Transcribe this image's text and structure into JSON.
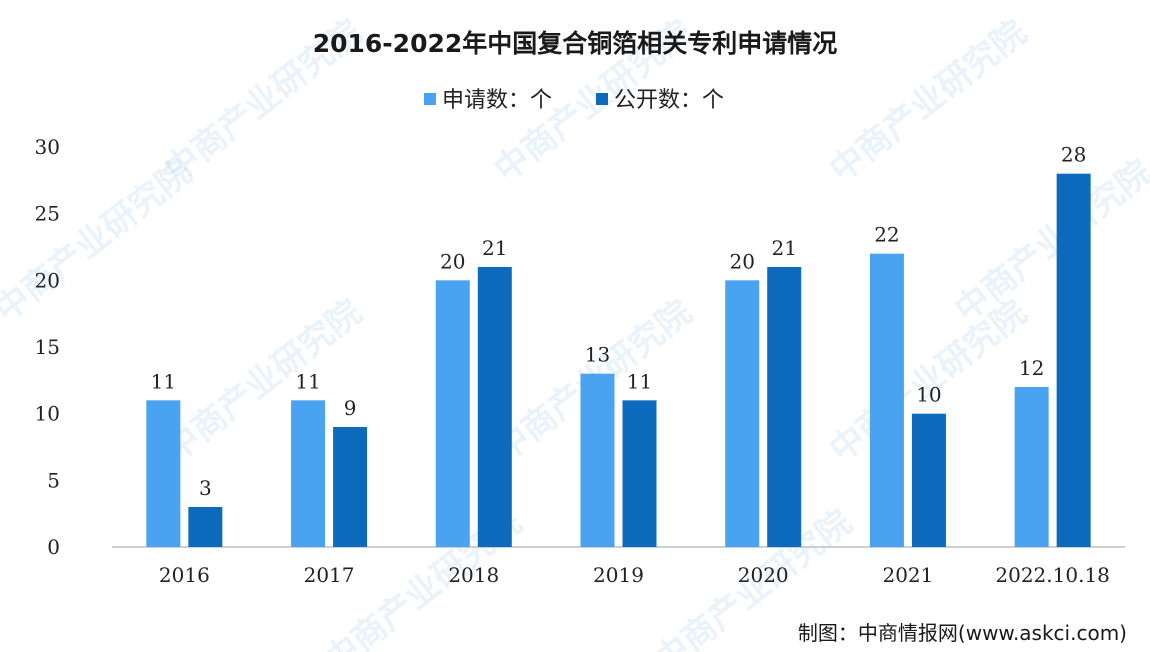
{
  "chart_data": {
    "type": "bar",
    "title": "2016-2022年中国复合铜箔相关专利申请情况",
    "categories": [
      "2016",
      "2017",
      "2018",
      "2019",
      "2020",
      "2021",
      "2022.10.18"
    ],
    "series": [
      {
        "name": "申请数：个",
        "color": "#4aa3f0",
        "values": [
          11,
          11,
          20,
          13,
          20,
          22,
          12
        ]
      },
      {
        "name": "公开数：个",
        "color": "#0d6bbd",
        "values": [
          3,
          9,
          21,
          11,
          21,
          10,
          28
        ]
      }
    ],
    "ylim": [
      0,
      30
    ],
    "yticks": [
      0,
      5,
      10,
      15,
      20,
      25,
      30
    ],
    "xlabel": "",
    "ylabel": "",
    "legend_position": "top-center",
    "grid": false
  },
  "source": "制图：中商情报网(www.askci.com)",
  "watermark": "中商产业研究院"
}
